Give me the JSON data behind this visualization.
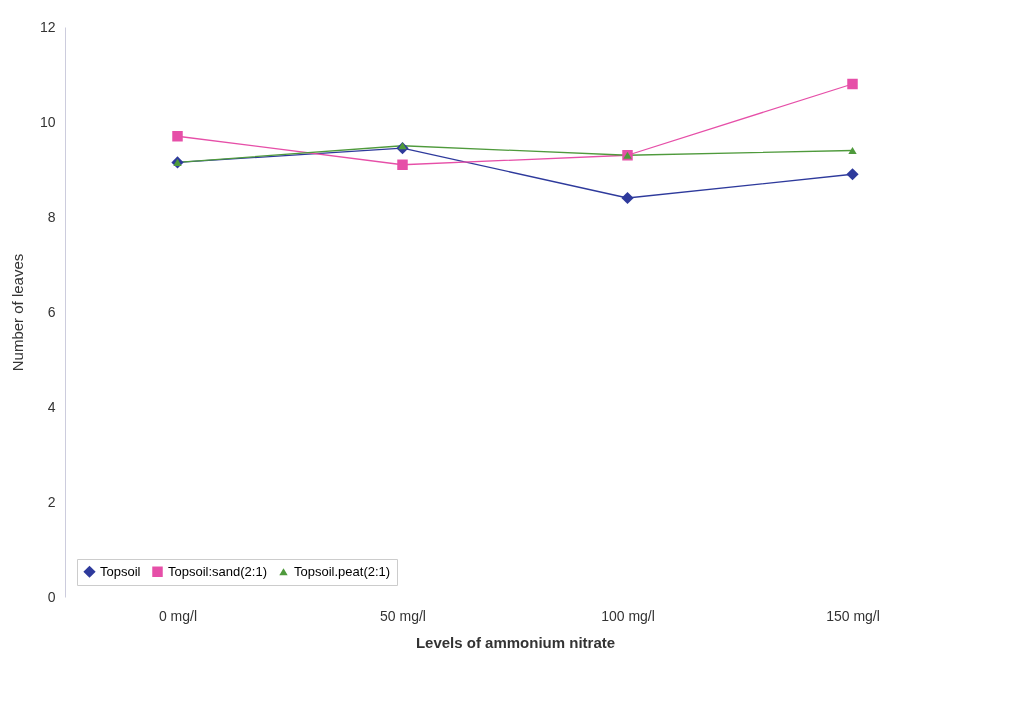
{
  "chart_data": {
    "type": "line",
    "xlabel": "Levels of ammonium nitrate",
    "ylabel": "Number of leaves",
    "categories": [
      "0 mg/l",
      "50 mg/l",
      "100 mg/l",
      "150 mg/l"
    ],
    "series": [
      {
        "name": "Topsoil",
        "color": "#2e3a9c",
        "marker": "diamond",
        "values": [
          9.15,
          9.45,
          8.4,
          8.9
        ]
      },
      {
        "name": "Topsoil:sand(2:1)",
        "color": "#e64fa8",
        "marker": "square",
        "values": [
          9.7,
          9.1,
          9.3,
          10.8
        ]
      },
      {
        "name": "Topsoil.peat(2:1)",
        "color": "#4f9a3c",
        "marker": "triangle",
        "values": [
          9.15,
          9.5,
          9.3,
          9.4
        ]
      }
    ],
    "ylim": [
      0,
      12
    ],
    "yticks": [
      0,
      2,
      4,
      6,
      8,
      10,
      12
    ],
    "grid": false,
    "legend": "bottom left",
    "line_style": "solid"
  }
}
